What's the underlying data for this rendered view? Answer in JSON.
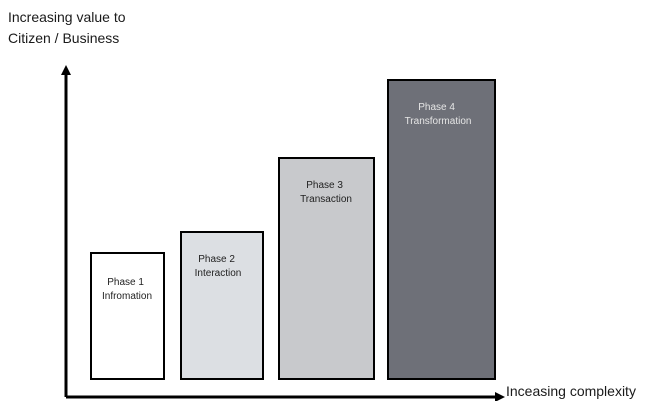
{
  "y_axis_label": [
    "Increasing value to",
    "Citizen / Business"
  ],
  "x_axis_label": "Inceasing complexity",
  "phases": [
    {
      "lines": [
        "Phase 1",
        "Infromation"
      ],
      "fill": "#ffffff",
      "text_color": "#222222"
    },
    {
      "lines": [
        "Phase 2",
        "Interaction"
      ],
      "fill": "#dcdfe3",
      "text_color": "#222222"
    },
    {
      "lines": [
        "Phase 3",
        "Transaction"
      ],
      "fill": "#c8c9cc",
      "text_color": "#222222"
    },
    {
      "lines": [
        "Phase 4",
        "Transformation"
      ],
      "fill": "#6e7078",
      "text_color": "#e6e6e6"
    }
  ]
}
